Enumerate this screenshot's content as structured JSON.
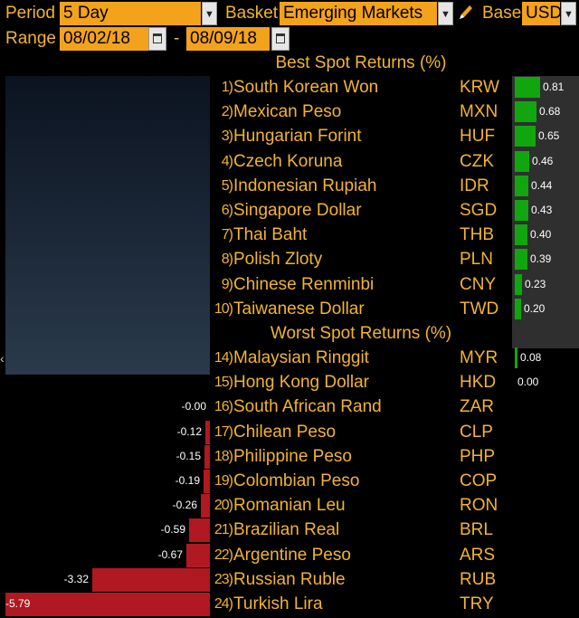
{
  "toolbar": {
    "period_label": "Period",
    "period_value": "5 Day",
    "basket_label": "Basket",
    "basket_value": "Emerging Markets",
    "base_label": "Base",
    "base_value": "USD",
    "range_label": "Range",
    "range_start": "08/02/18",
    "range_sep": "-",
    "range_end": "08/09/18",
    "dropdown_glyph": "▼"
  },
  "best": {
    "title": "Best Spot Returns (%)",
    "rows": [
      {
        "rank": "1)",
        "name": "South Korean Won",
        "code": "KRW",
        "value": 0.81,
        "label": "0.81"
      },
      {
        "rank": "2)",
        "name": "Mexican Peso",
        "code": "MXN",
        "value": 0.68,
        "label": "0.68"
      },
      {
        "rank": "3)",
        "name": "Hungarian Forint",
        "code": "HUF",
        "value": 0.65,
        "label": "0.65"
      },
      {
        "rank": "4)",
        "name": "Czech Koruna",
        "code": "CZK",
        "value": 0.46,
        "label": "0.46"
      },
      {
        "rank": "5)",
        "name": "Indonesian Rupiah",
        "code": "IDR",
        "value": 0.44,
        "label": "0.44"
      },
      {
        "rank": "6)",
        "name": "Singapore Dollar",
        "code": "SGD",
        "value": 0.43,
        "label": "0.43"
      },
      {
        "rank": "7)",
        "name": "Thai Baht",
        "code": "THB",
        "value": 0.4,
        "label": "0.40"
      },
      {
        "rank": "8)",
        "name": "Polish Zloty",
        "code": "PLN",
        "value": 0.39,
        "label": "0.39"
      },
      {
        "rank": "9)",
        "name": "Chinese Renminbi",
        "code": "CNY",
        "value": 0.23,
        "label": "0.23"
      },
      {
        "rank": "10)",
        "name": "Taiwanese Dollar",
        "code": "TWD",
        "value": 0.2,
        "label": "0.20"
      }
    ]
  },
  "worst": {
    "title": "Worst Spot Returns (%)",
    "rows": [
      {
        "rank": "14)",
        "name": "Malaysian Ringgit",
        "code": "MYR",
        "value": 0.08,
        "label": "0.08"
      },
      {
        "rank": "15)",
        "name": "Hong Kong Dollar",
        "code": "HKD",
        "value": 0.0,
        "label": "0.00"
      },
      {
        "rank": "16)",
        "name": "South African Rand",
        "code": "ZAR",
        "value": -0.0,
        "label": "-0.00"
      },
      {
        "rank": "17)",
        "name": "Chilean Peso",
        "code": "CLP",
        "value": -0.12,
        "label": "-0.12"
      },
      {
        "rank": "18)",
        "name": "Philippine Peso",
        "code": "PHP",
        "value": -0.15,
        "label": "-0.15"
      },
      {
        "rank": "19)",
        "name": "Colombian Peso",
        "code": "COP",
        "value": -0.19,
        "label": "-0.19"
      },
      {
        "rank": "20)",
        "name": "Romanian Leu",
        "code": "RON",
        "value": -0.26,
        "label": "-0.26"
      },
      {
        "rank": "21)",
        "name": "Brazilian Real",
        "code": "BRL",
        "value": -0.59,
        "label": "-0.59"
      },
      {
        "rank": "22)",
        "name": "Argentine Peso",
        "code": "ARS",
        "value": -0.67,
        "label": "-0.67"
      },
      {
        "rank": "23)",
        "name": "Russian Ruble",
        "code": "RUB",
        "value": -3.32,
        "label": "-3.32"
      },
      {
        "rank": "24)",
        "name": "Turkish Lira",
        "code": "TRY",
        "value": -5.79,
        "label": "-5.79"
      }
    ]
  },
  "colors": {
    "accent": "#f3b42e",
    "field": "#f3a21c",
    "positive": "#11a60f",
    "negative": "#b01822"
  }
}
